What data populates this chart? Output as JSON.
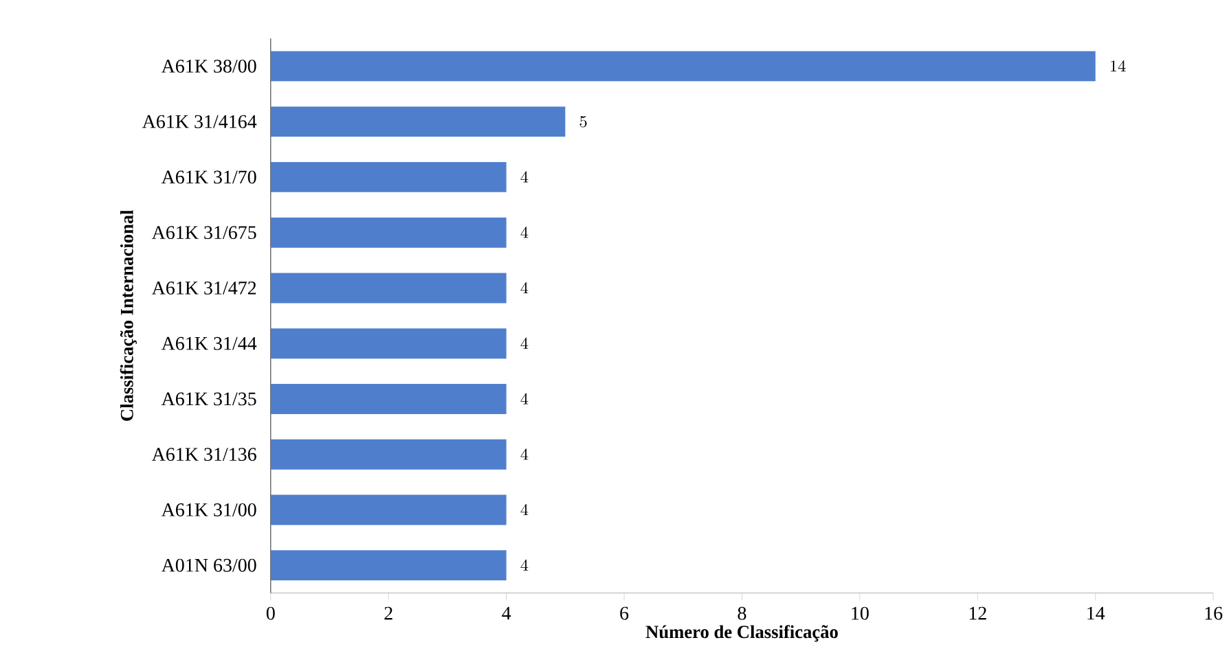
{
  "chart_data": {
    "type": "bar",
    "orientation": "horizontal",
    "xlabel": "Número de Classificação",
    "ylabel": "Classificação Internacional",
    "categories": [
      "A61K 38/00",
      "A61K 31/4164",
      "A61K 31/70",
      "A61K 31/675",
      "A61K 31/472",
      "A61K 31/44",
      "A61K 31/35",
      "A61K 31/136",
      "A61K 31/00",
      "A01N 63/00"
    ],
    "values": [
      14,
      5,
      4,
      4,
      4,
      4,
      4,
      4,
      4,
      4
    ],
    "color": "#4f7fcc",
    "xlim": [
      0,
      16
    ],
    "xticks": [
      0,
      2,
      4,
      6,
      8,
      10,
      12,
      14,
      16
    ],
    "grid": false,
    "data_labels": true
  }
}
